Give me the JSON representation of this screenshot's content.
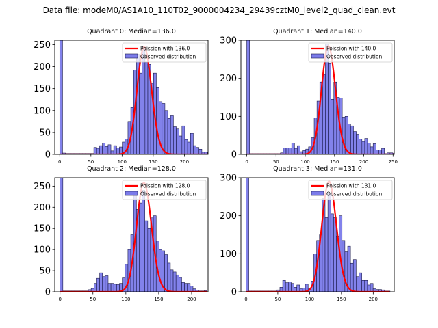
{
  "figure": {
    "suptitle": "Data file: modeM0/AS1A10_110T02_9000004234_29439cztM0_level2_quad_clean.evt"
  },
  "colors": {
    "bar_fill": "#7b7bea",
    "bar_edge": "#1a1a4a",
    "poisson_line": "#ff0000"
  },
  "chart_data": [
    {
      "type": "bar",
      "title": "Quadrant 0: Median=136.0",
      "median": 136.0,
      "xlabel": "",
      "ylabel": "",
      "xlim": [
        -8,
        238
      ],
      "ylim": [
        0,
        260
      ],
      "xticks": [
        0,
        50,
        100,
        150,
        200
      ],
      "yticks": [
        0,
        50,
        100,
        150,
        200,
        250
      ],
      "legend": {
        "location": "top-right",
        "entries": [
          "Poission with 136.0",
          "Observed distribution"
        ]
      },
      "bin_start": 0,
      "bin_width": 4.56,
      "values": [
        300,
        3,
        2,
        2,
        2,
        2,
        2,
        2,
        2,
        2,
        2,
        2,
        16,
        14,
        20,
        26,
        18,
        22,
        8,
        20,
        15,
        17,
        28,
        35,
        75,
        107,
        192,
        228,
        185,
        245,
        210,
        205,
        162,
        185,
        152,
        120,
        116,
        100,
        82,
        88,
        63,
        58,
        42,
        65,
        34,
        28,
        48,
        20,
        16,
        12,
        5,
        5,
        4,
        3
      ],
      "poisson_mean": 136.0,
      "poisson_peak": 245
    },
    {
      "type": "bar",
      "title": "Quadrant 1: Median=140.0",
      "median": 140.0,
      "xlabel": "",
      "ylabel": "",
      "xlim": [
        -10,
        252
      ],
      "ylim": [
        0,
        300
      ],
      "xticks": [
        0,
        50,
        100,
        150,
        200,
        250
      ],
      "yticks": [
        0,
        100,
        200,
        300
      ],
      "legend": {
        "location": "top-right",
        "entries": [
          "Poission with 140.0",
          "Observed distribution"
        ]
      },
      "bin_start": 0,
      "bin_width": 4.8,
      "values": [
        300,
        2,
        2,
        2,
        2,
        2,
        2,
        2,
        2,
        2,
        2,
        2,
        4,
        17,
        17,
        17,
        30,
        16,
        23,
        7,
        10,
        14,
        20,
        44,
        96,
        140,
        190,
        210,
        290,
        240,
        145,
        190,
        150,
        148,
        98,
        100,
        80,
        75,
        60,
        53,
        40,
        34,
        42,
        30,
        20,
        28,
        12,
        12,
        16,
        2,
        4,
        4,
        3
      ],
      "poisson_mean": 140.0,
      "poisson_peak": 285
    },
    {
      "type": "bar",
      "title": "Quadrant 2: Median=128.0",
      "median": 128.0,
      "xlabel": "",
      "ylabel": "",
      "xlim": [
        -8,
        225
      ],
      "ylim": [
        0,
        270
      ],
      "xticks": [
        0,
        50,
        100,
        150,
        200
      ],
      "yticks": [
        0,
        50,
        100,
        150,
        200,
        250
      ],
      "legend": {
        "location": "top-right",
        "entries": [
          "Poission with 128.0",
          "Observed distribution"
        ]
      },
      "bin_start": 0,
      "bin_width": 4.3,
      "values": [
        300,
        2,
        2,
        2,
        2,
        2,
        2,
        2,
        2,
        2,
        5,
        8,
        20,
        32,
        45,
        36,
        38,
        20,
        20,
        18,
        17,
        20,
        33,
        65,
        100,
        135,
        232,
        195,
        210,
        240,
        168,
        150,
        175,
        180,
        120,
        100,
        97,
        88,
        68,
        52,
        47,
        40,
        34,
        22,
        20,
        20,
        14,
        7,
        4,
        2,
        2,
        3
      ],
      "poisson_mean": 128.0,
      "poisson_peak": 258
    },
    {
      "type": "bar",
      "title": "Quadrant 3: Median=131.0",
      "median": 131.0,
      "xlabel": "",
      "ylabel": "",
      "xlim": [
        -8,
        233
      ],
      "ylim": [
        0,
        300
      ],
      "xticks": [
        0,
        50,
        100,
        150,
        200
      ],
      "yticks": [
        0,
        100,
        200,
        300
      ],
      "legend": {
        "location": "top-right",
        "entries": [
          "Poission with 131.0",
          "Observed distribution"
        ]
      },
      "bin_start": 0,
      "bin_width": 4.44,
      "values": [
        300,
        2,
        2,
        2,
        2,
        2,
        2,
        2,
        2,
        2,
        2,
        5,
        12,
        30,
        24,
        26,
        22,
        12,
        18,
        8,
        10,
        20,
        10,
        28,
        100,
        135,
        150,
        245,
        195,
        260,
        205,
        195,
        145,
        200,
        135,
        105,
        120,
        75,
        85,
        40,
        50,
        30,
        30,
        18,
        22,
        8,
        6,
        6,
        5,
        2,
        2
      ],
      "poisson_mean": 131.0,
      "poisson_peak": 290
    }
  ]
}
